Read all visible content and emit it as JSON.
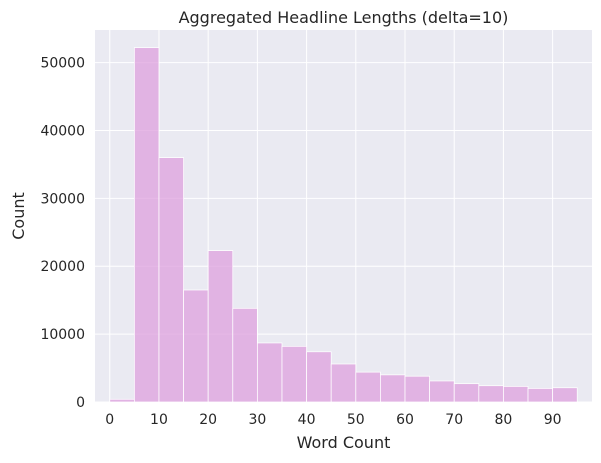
{
  "chart_data": {
    "type": "bar",
    "title": "Aggregated Headline Lengths (delta=10)",
    "xlabel": "Word Count",
    "ylabel": "Count",
    "bin_width": 5,
    "bins": [
      {
        "start": 0,
        "end": 5,
        "value": 400
      },
      {
        "start": 5,
        "end": 10,
        "value": 52200
      },
      {
        "start": 10,
        "end": 15,
        "value": 36000
      },
      {
        "start": 15,
        "end": 20,
        "value": 16500
      },
      {
        "start": 20,
        "end": 25,
        "value": 22300
      },
      {
        "start": 25,
        "end": 30,
        "value": 13800
      },
      {
        "start": 30,
        "end": 35,
        "value": 8700
      },
      {
        "start": 35,
        "end": 40,
        "value": 8200
      },
      {
        "start": 40,
        "end": 45,
        "value": 7400
      },
      {
        "start": 45,
        "end": 50,
        "value": 5600
      },
      {
        "start": 50,
        "end": 55,
        "value": 4400
      },
      {
        "start": 55,
        "end": 60,
        "value": 4000
      },
      {
        "start": 60,
        "end": 65,
        "value": 3800
      },
      {
        "start": 65,
        "end": 70,
        "value": 3100
      },
      {
        "start": 70,
        "end": 75,
        "value": 2700
      },
      {
        "start": 75,
        "end": 80,
        "value": 2400
      },
      {
        "start": 80,
        "end": 85,
        "value": 2300
      },
      {
        "start": 85,
        "end": 90,
        "value": 2000
      },
      {
        "start": 90,
        "end": 95,
        "value": 2100
      }
    ],
    "xlim": [
      -3,
      98
    ],
    "ylim": [
      0,
      54800
    ],
    "xticks": [
      0,
      10,
      20,
      30,
      40,
      50,
      60,
      70,
      80,
      90
    ],
    "yticks": [
      0,
      10000,
      20000,
      30000,
      40000,
      50000
    ],
    "grid": true,
    "colors": {
      "background": "#eaeaf2",
      "grid": "#ffffff",
      "bar_fill": "#dda0dd",
      "bar_stroke": "#ffffff",
      "text": "#262626"
    }
  }
}
